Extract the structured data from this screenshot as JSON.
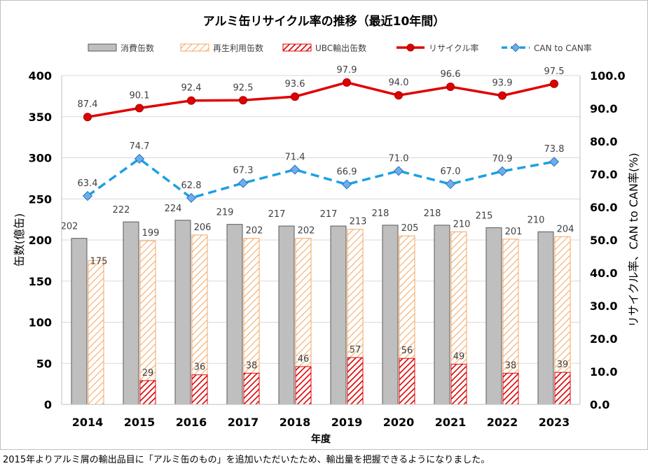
{
  "title": "アルミ缶リサイクル率の推移（最近10年間）",
  "footnote": "2015年よりアルミ屑の輸出品目に「アルミ缶のもの」を追加いただいたため、輸出量を把握できるようになりました。",
  "chart_data": {
    "type": "bar",
    "title": "アルミ缶リサイクル率の推移（最近10年間）",
    "xlabel": "年度",
    "ylabel": "缶数(億缶)",
    "y2label": "リサイクル率、CAN to CAN率(%)",
    "ylim": [
      0,
      400
    ],
    "y2lim": [
      0,
      100
    ],
    "yticks": [
      "0",
      "50",
      "100",
      "150",
      "200",
      "250",
      "300",
      "350",
      "400"
    ],
    "y2ticks": [
      "0.0",
      "10.0",
      "20.0",
      "30.0",
      "40.0",
      "50.0",
      "60.0",
      "70.0",
      "80.0",
      "90.0",
      "100.0"
    ],
    "grid": true,
    "legend_position": "top",
    "categories": [
      "2014",
      "2015",
      "2016",
      "2017",
      "2018",
      "2019",
      "2020",
      "2021",
      "2022",
      "2023"
    ],
    "series": [
      {
        "name": "消費缶数",
        "type": "bar",
        "axis": "left",
        "color": "#bfbfbf",
        "values": [
          202,
          222,
          224,
          219,
          217,
          217,
          218,
          218,
          215,
          210
        ],
        "labels": [
          "202",
          "222",
          "224",
          "219",
          "217",
          "217",
          "218",
          "218",
          "215",
          "210"
        ]
      },
      {
        "name": "再生利用缶数",
        "type": "bar",
        "axis": "left",
        "color": "#f4a460",
        "values": [
          175,
          199,
          206,
          202,
          202,
          213,
          205,
          210,
          201,
          204
        ],
        "labels": [
          "175",
          "199",
          "206",
          "202",
          "202",
          "213",
          "205",
          "210",
          "201",
          "204"
        ]
      },
      {
        "name": "UBC輸出缶数",
        "type": "bar",
        "axis": "left",
        "color": "#e00000",
        "values": [
          null,
          29,
          36,
          38,
          46,
          57,
          56,
          49,
          38,
          39
        ],
        "labels": [
          "",
          "29",
          "36",
          "38",
          "46",
          "57",
          "56",
          "49",
          "38",
          "39"
        ]
      },
      {
        "name": "リサイクル率",
        "type": "line",
        "axis": "right",
        "color": "#e00000",
        "values": [
          87.4,
          90.1,
          92.4,
          92.5,
          93.6,
          97.9,
          94.0,
          96.6,
          93.9,
          97.5
        ],
        "labels": [
          "87.4",
          "90.1",
          "92.4",
          "92.5",
          "93.6",
          "97.9",
          "94.0",
          "96.6",
          "93.9",
          "97.5"
        ]
      },
      {
        "name": "CAN to CAN率",
        "type": "line",
        "axis": "right",
        "color": "#1ba1e2",
        "values": [
          63.4,
          74.7,
          62.8,
          67.3,
          71.4,
          66.9,
          71.0,
          67.0,
          70.9,
          73.8
        ],
        "labels": [
          "63.4",
          "74.7",
          "62.8",
          "67.3",
          "71.4",
          "66.9",
          "71.0",
          "67.0",
          "70.9",
          "73.8"
        ]
      }
    ]
  }
}
